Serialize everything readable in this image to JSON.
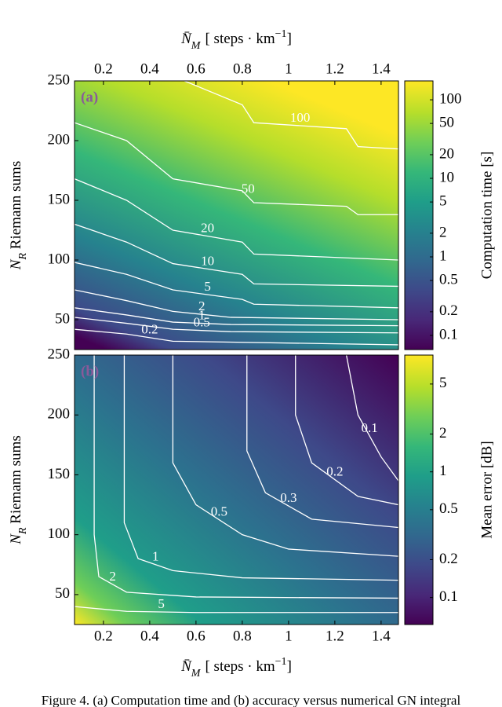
{
  "chart_data": [
    {
      "type": "contour",
      "panel_label": "(a)",
      "xaxis_position": "top",
      "x_label": {
        "symbol": "N̄",
        "sub": "M",
        "unit": "[ steps · km",
        "sup": "−1",
        "close": "]"
      },
      "y_label": {
        "symbol": "N",
        "sub": "R",
        "text": " Riemann sums"
      },
      "color_label": "Computation time [s]",
      "xlim": [
        0.075,
        1.475
      ],
      "xticks": [
        0.2,
        0.4,
        0.6,
        0.8,
        1,
        1.2,
        1.4
      ],
      "ylim": [
        25,
        250
      ],
      "yticks": [
        50,
        100,
        150,
        200,
        250
      ],
      "clim": [
        0.066,
        174
      ],
      "clog": true,
      "colormap": "viridis",
      "cticks": [
        0.1,
        0.2,
        0.5,
        1,
        2,
        5,
        10,
        20,
        50,
        100
      ],
      "contour_color": "#ffffff",
      "contours": [
        {
          "level": 0.2,
          "x": [
            0.075,
            0.3,
            0.5,
            1.475
          ],
          "y": [
            42,
            38,
            32,
            29
          ]
        },
        {
          "level": 0.5,
          "x": [
            0.075,
            0.3,
            0.5,
            0.75,
            1.475
          ],
          "y": [
            52,
            47,
            42,
            40,
            39
          ]
        },
        {
          "level": 1,
          "x": [
            0.075,
            0.3,
            0.5,
            0.75,
            1.475
          ],
          "y": [
            60,
            54,
            48,
            46,
            45
          ]
        },
        {
          "level": 2,
          "x": [
            0.075,
            0.3,
            0.5,
            0.75,
            1.475
          ],
          "y": [
            75,
            66,
            57,
            52,
            50
          ]
        },
        {
          "level": 5,
          "x": [
            0.075,
            0.3,
            0.5,
            0.8,
            0.85,
            1.475
          ],
          "y": [
            98,
            88,
            75,
            67,
            63,
            60
          ]
        },
        {
          "level": 10,
          "x": [
            0.075,
            0.3,
            0.5,
            0.8,
            0.85,
            1.475
          ],
          "y": [
            130,
            115,
            97,
            88,
            80,
            78
          ]
        },
        {
          "level": 20,
          "x": [
            0.075,
            0.3,
            0.5,
            0.8,
            0.85,
            1.475
          ],
          "y": [
            168,
            150,
            125,
            115,
            105,
            100
          ]
        },
        {
          "level": 50,
          "x": [
            0.075,
            0.3,
            0.5,
            0.8,
            0.85,
            1.25,
            1.3,
            1.475
          ],
          "y": [
            215,
            200,
            168,
            158,
            148,
            145,
            138,
            138
          ]
        },
        {
          "level": 100,
          "x": [
            0.55,
            0.8,
            0.85,
            1.25,
            1.3,
            1.475
          ],
          "y": [
            250,
            230,
            215,
            210,
            195,
            193
          ]
        }
      ]
    },
    {
      "type": "contour",
      "panel_label": "(b)",
      "xaxis_position": "bottom",
      "x_label": {
        "symbol": "N̄",
        "sub": "M",
        "unit": "[ steps · km",
        "sup": "−1",
        "close": "]"
      },
      "y_label": {
        "symbol": "N",
        "sub": "R",
        "text": " Riemann sums"
      },
      "color_label": "Mean error [dB]",
      "xlim": [
        0.075,
        1.475
      ],
      "xticks": [
        0.2,
        0.4,
        0.6,
        0.8,
        1,
        1.2,
        1.4
      ],
      "ylim": [
        25,
        250
      ],
      "yticks": [
        50,
        100,
        150,
        200,
        250
      ],
      "clim": [
        0.061,
        8.5
      ],
      "clog": true,
      "colormap": "viridis",
      "cticks": [
        0.1,
        0.2,
        0.5,
        1,
        2,
        5
      ],
      "contour_color": "#ffffff",
      "contours": [
        {
          "level": 5,
          "x": [
            0.075,
            0.3,
            0.6,
            1.475
          ],
          "y": [
            40,
            36,
            35,
            35
          ]
        },
        {
          "level": 2,
          "x": [
            0.16,
            0.16,
            0.18,
            0.3,
            0.6,
            1.475
          ],
          "y": [
            250,
            100,
            65,
            52,
            48,
            47
          ]
        },
        {
          "level": 1,
          "x": [
            0.29,
            0.29,
            0.35,
            0.5,
            0.8,
            1.475
          ],
          "y": [
            250,
            110,
            80,
            70,
            64,
            62
          ]
        },
        {
          "level": 0.5,
          "x": [
            0.5,
            0.5,
            0.6,
            0.8,
            1.0,
            1.475
          ],
          "y": [
            250,
            160,
            125,
            100,
            88,
            82
          ]
        },
        {
          "level": 0.3,
          "x": [
            0.82,
            0.82,
            0.9,
            1.1,
            1.475
          ],
          "y": [
            250,
            170,
            135,
            113,
            106
          ]
        },
        {
          "level": 0.2,
          "x": [
            1.03,
            1.03,
            1.1,
            1.3,
            1.475
          ],
          "y": [
            250,
            200,
            160,
            132,
            125
          ]
        },
        {
          "level": 0.1,
          "x": [
            1.25,
            1.3,
            1.4,
            1.475
          ],
          "y": [
            250,
            200,
            165,
            145
          ]
        }
      ]
    }
  ],
  "caption": "Figure 4. (a) Computation time and (b) accuracy versus numerical GN integral"
}
